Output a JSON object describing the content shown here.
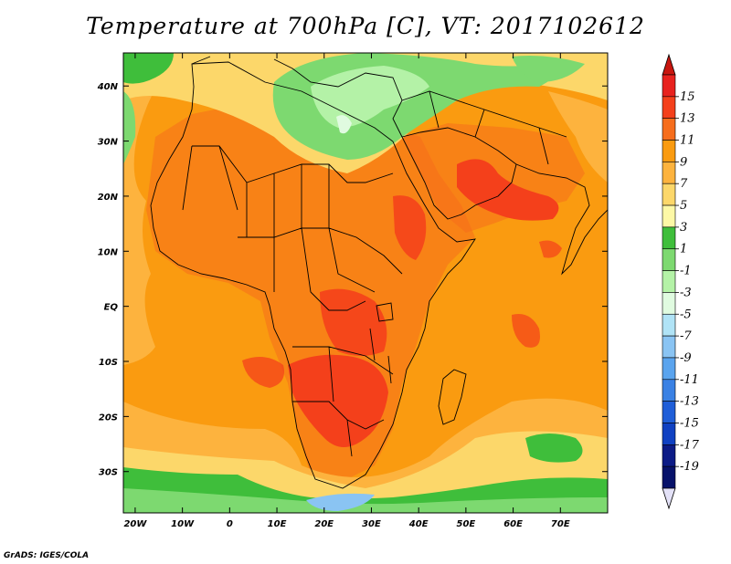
{
  "title": "Temperature at 700hPa [C], VT: 2017102612",
  "credit": "GrADS: IGES/COLA",
  "axes": {
    "lon_labels": [
      "20W",
      "10W",
      "0",
      "10E",
      "20E",
      "30E",
      "40E",
      "50E",
      "60E",
      "70E"
    ],
    "lon_values": [
      -20,
      -10,
      0,
      10,
      20,
      30,
      40,
      50,
      60,
      70
    ],
    "lat_labels": [
      "40N",
      "30N",
      "20N",
      "10N",
      "EQ",
      "10S",
      "20S",
      "30S"
    ],
    "lat_values": [
      40,
      30,
      20,
      10,
      0,
      -10,
      -20,
      -30
    ],
    "lon_range": [
      -22.5,
      80
    ],
    "lat_range": [
      -37.5,
      46
    ]
  },
  "colorbar": {
    "labels": [
      "15",
      "13",
      "11",
      "9",
      "7",
      "5",
      "3",
      "1",
      "-1",
      "-3",
      "-5",
      "-7",
      "-9",
      "-11",
      "-13",
      "-15",
      "-17",
      "-19"
    ],
    "colors": [
      "#e8221e",
      "#f4401b",
      "#f66d1c",
      "#fa9b10",
      "#fdb33e",
      "#fcd76a",
      "#fdf8a6",
      "#3fbe3b",
      "#7dd970",
      "#b4f2a7",
      "#e0fbe0",
      "#b0e3f6",
      "#8ac4f3",
      "#5aa4ee",
      "#3a81e4",
      "#1f5ed8",
      "#1041c2",
      "#0c1b86",
      "#07126a"
    ],
    "top_arrow_color": "#c8160f",
    "bottom_arrow_color": "#e3e1f7"
  },
  "map": {
    "ocean_color": "#fa9b10",
    "land_color": "#f66d1c",
    "hot_color": "#f4401b",
    "mild_color": "#fdb33e",
    "cool_color": "#fcd76a",
    "green_color": "#7dd970",
    "dark_green_color": "#3fbe3b",
    "blue_color": "#8ac4f3",
    "border_color": "#000000"
  }
}
